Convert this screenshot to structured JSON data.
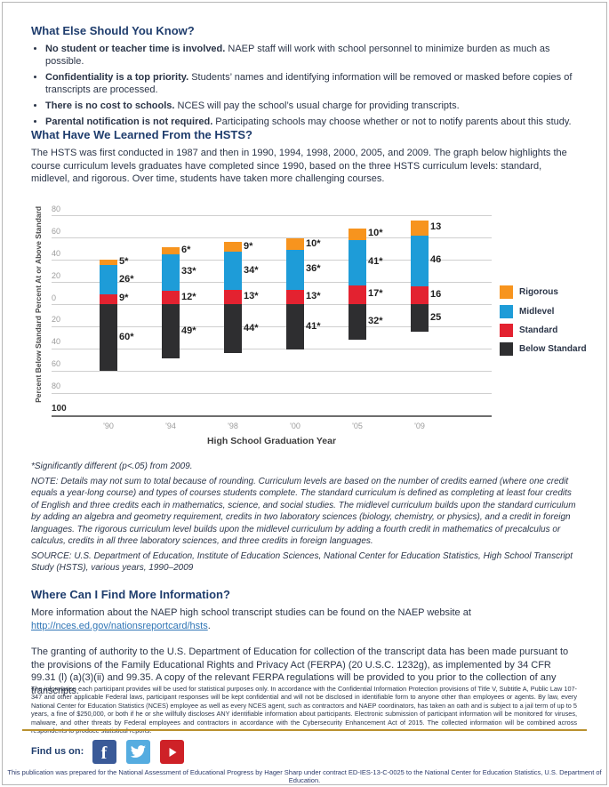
{
  "sections": {
    "know": {
      "heading": "What Else Should You Know?",
      "bullets": [
        {
          "lead": "No student or teacher time is involved.",
          "text": " NAEP staff will work with school personnel to minimize burden as much as possible."
        },
        {
          "lead": "Confidentiality is a top priority.",
          "text": " Students’ names and identifying information will be removed or masked before copies of transcripts are processed."
        },
        {
          "lead": "There is no cost to schools.",
          "text": " NCES will pay the school’s usual charge for providing transcripts."
        },
        {
          "lead": "Parental notification is not required.",
          "text": " Participating schools may choose whether or not to notify parents about this study."
        }
      ]
    },
    "learned": {
      "heading": "What Have We Learned From the HSTS?",
      "paragraph": "The HSTS was first conducted in 1987 and then in 1990, 1994, 1998, 2000, 2005, and 2009. The graph below highlights the course curriculum levels graduates have completed since 1990, based on the three HSTS curriculum levels: standard, midlevel, and rigorous. Over time, students have taken more challenging courses."
    },
    "notes": {
      "significance": "*Significantly different (p<.05) from 2009.",
      "note": "NOTE: Details may not sum to total because of rounding. Curriculum levels are based on the number of credits earned (where one credit equals a year-long course) and types of courses students complete. The standard curriculum is defined as completing at least four credits of English and three credits each in mathematics, science, and social studies. The midlevel curriculum builds upon the standard curriculum by adding an algebra and geometry requirement, credits in two laboratory sciences (biology, chemistry, or physics), and a credit in foreign languages. The rigorous curriculum level builds upon the midlevel curriculum by adding a fourth credit in mathematics of precalculus or calculus, credits in all three laboratory sciences, and three credits in foreign languages.",
      "source": "SOURCE: U.S. Department of Education, Institute of Education Sciences, National Center for Education Statistics, High School Transcript Study (HSTS), various years, 1990–2009"
    },
    "info": {
      "heading": "Where Can I Find More Information?",
      "before_link": "More information about the NAEP high school transcript studies can be found on the NAEP website at ",
      "link": "http://nces.ed.gov/nationsreportcard/hsts",
      "after_link": ".",
      "ferpa": "The granting of authority to the U.S. Department of Education for collection of the transcript data has been made pursuant to the provisions of the Family Educational Rights and Privacy Act (FERPA) (20 U.S.C. 1232g), as implemented by 34 CFR 99.31 (l) (a)(3)(ii) and 99.35. A copy of the relevant FERPA regulations will be provided to you prior to the collection of any transcripts."
    },
    "fine_print": "The information each participant provides will be used for statistical purposes only. In accordance with the Confidential Information Protection provisions of Title V, Subtitle A, Public Law 107-347 and other applicable Federal laws, participant responses will be kept confidential and will not be disclosed in identifiable form to anyone other than employees or agents. By law, every National Center for Education Statistics (NCES) employee as well as every NCES agent, such as contractors and NAEP coordinators, has taken an oath and is subject to a jail term of up to 5 years, a fine of $250,000, or both if he or she willfully discloses ANY identifiable information about participants. Electronic submission of participant information will be monitored for viruses, malware, and other threats by Federal employees and contractors in accordance with the Cybersecurity Enhancement Act of 2015. The collected information will be combined across respondents to produce statistical reports."
  },
  "footer": {
    "find_us_label": "Find us on:",
    "social": [
      {
        "name": "facebook",
        "color": "#3a5a98"
      },
      {
        "name": "twitter",
        "color": "#55ace0"
      },
      {
        "name": "youtube",
        "color": "#ce2127"
      }
    ],
    "note": "This publication was prepared for the National Assessment of Educational Progress by Hager Sharp under contract ED-IES-13-C-0025 to the National Center for Education Statistics, U.S. Department of Education."
  },
  "colors": {
    "heading": "#1f3d6d",
    "body": "#2b3548",
    "link": "#2e74b5",
    "divider_gold": "#b9912f"
  },
  "chart_data": {
    "type": "bar",
    "subtype": "diverging-stacked",
    "categories": [
      "'90",
      "'94",
      "'98",
      "'00",
      "'05",
      "'09"
    ],
    "series": [
      {
        "name": "Rigorous",
        "color": "#F7941E",
        "direction": "above",
        "values": [
          5,
          6,
          9,
          10,
          10,
          13
        ],
        "labels": [
          "5*",
          "6*",
          "9*",
          "10*",
          "10*",
          "13"
        ]
      },
      {
        "name": "Midlevel",
        "color": "#1E9CD8",
        "direction": "above",
        "values": [
          26,
          33,
          34,
          36,
          41,
          46
        ],
        "labels": [
          "26*",
          "33*",
          "34*",
          "36*",
          "41*",
          "46"
        ]
      },
      {
        "name": "Standard",
        "color": "#E32230",
        "direction": "above",
        "values": [
          9,
          12,
          13,
          13,
          17,
          16
        ],
        "labels": [
          "9*",
          "12*",
          "13*",
          "13*",
          "17*",
          "16"
        ]
      },
      {
        "name": "Below Standard",
        "color": "#2E2E30",
        "direction": "below",
        "values": [
          60,
          49,
          44,
          41,
          32,
          25
        ],
        "labels": [
          "60*",
          "49*",
          "44*",
          "41*",
          "32*",
          "25"
        ]
      }
    ],
    "xlabel": "High School Graduation Year",
    "ylabel_top": "Percent At or Above Standard",
    "ylabel_bottom": "Percent Below Standard",
    "y_ticks_top": [
      80,
      60,
      40,
      20,
      0
    ],
    "y_ticks_bottom": [
      20,
      40,
      60,
      80,
      100
    ],
    "ylim_above": [
      0,
      80
    ],
    "ylim_below": [
      0,
      100
    ],
    "grid": true,
    "legend_position": "right"
  }
}
